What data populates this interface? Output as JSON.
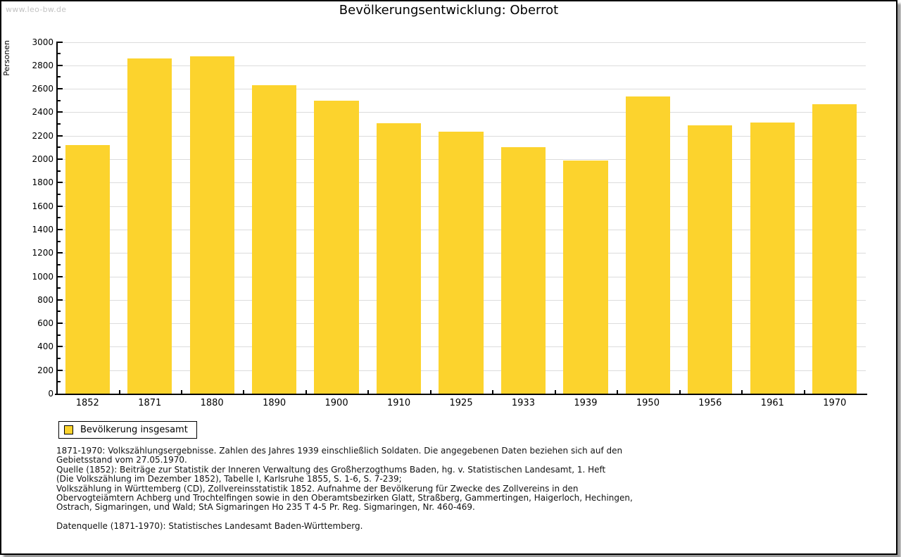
{
  "watermark": "www.leo-bw.de",
  "chart_data": {
    "type": "bar",
    "title": "Bevölkerungsentwicklung: Oberrot",
    "ylabel": "Personen",
    "xlabel": "",
    "ylim": [
      0,
      3000
    ],
    "ytick_major": 200,
    "ytick_minor": 100,
    "grid": true,
    "legend_position": "bottom-left",
    "bar_color": "#FCD32D",
    "categories": [
      "1852",
      "1871",
      "1880",
      "1890",
      "1900",
      "1910",
      "1925",
      "1933",
      "1939",
      "1950",
      "1956",
      "1961",
      "1970"
    ],
    "series": [
      {
        "name": "Bevölkerung insgesamt",
        "values": [
          2120,
          2860,
          2875,
          2630,
          2500,
          2305,
          2235,
          2100,
          1990,
          2535,
          2290,
          2310,
          2470
        ]
      }
    ]
  },
  "footnotes": {
    "lines": [
      "1871-1970: Volkszählungsergebnisse. Zahlen des Jahres 1939 einschließlich Soldaten. Die angegebenen Daten beziehen sich auf den",
      "Gebietsstand vom 27.05.1970.",
      "Quelle (1852): Beiträge zur Statistik der Inneren Verwaltung des Großherzogthums Baden, hg. v. Statistischen Landesamt, 1. Heft",
      "(Die Volkszählung im Dezember 1852), Tabelle I, Karlsruhe 1855, S. 1-6, S. 7-239;",
      "Volkszählung in Württemberg (CD), Zollvereinsstatistik 1852. Aufnahme der Bevölkerung für Zwecke des Zollvereins in den",
      "Obervogteiämtern Achberg und Trochtelfingen sowie in den Oberamtsbezirken Glatt, Straßberg, Gammertingen, Haigerloch, Hechingen,",
      "Ostrach, Sigmaringen, und Wald; StA Sigmaringen Ho 235 T 4-5 Pr. Reg. Sigmaringen, Nr. 460-469."
    ],
    "datenquelle": "Datenquelle (1871-1970): Statistisches Landesamt Baden-Württemberg."
  }
}
